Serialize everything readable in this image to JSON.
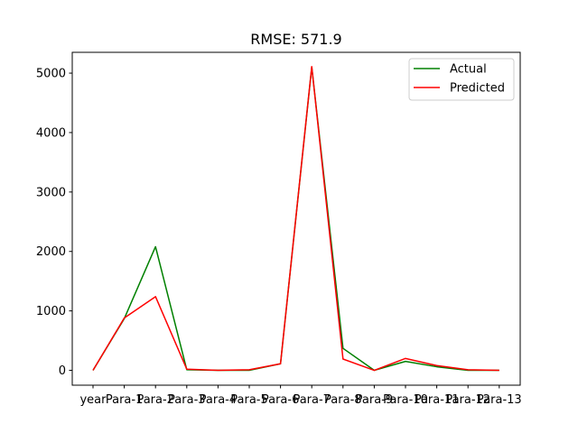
{
  "chart_data": {
    "type": "line",
    "title": "RMSE: 571.9",
    "xlabel": "",
    "ylabel": "",
    "categories": [
      "year",
      "Para-1",
      "Para-2",
      "Para-3",
      "Para-4",
      "Para-5",
      "Para-6",
      "Para-7",
      "Para-8",
      "Para-9",
      "Para-10",
      "Para-11",
      "Para-12",
      "Para-13"
    ],
    "yticks": [
      0,
      1000,
      2000,
      3000,
      4000,
      5000
    ],
    "ylim": [
      -250,
      5350
    ],
    "grid": false,
    "legend_position": "top-right",
    "series": [
      {
        "name": "Actual",
        "color": "#008000",
        "values": [
          0,
          870,
          2080,
          10,
          0,
          0,
          110,
          5100,
          370,
          0,
          150,
          60,
          0,
          0
        ]
      },
      {
        "name": "Predicted",
        "color": "#ff0000",
        "values": [
          0,
          880,
          1240,
          20,
          0,
          10,
          110,
          5110,
          190,
          0,
          200,
          80,
          10,
          0
        ]
      }
    ]
  }
}
